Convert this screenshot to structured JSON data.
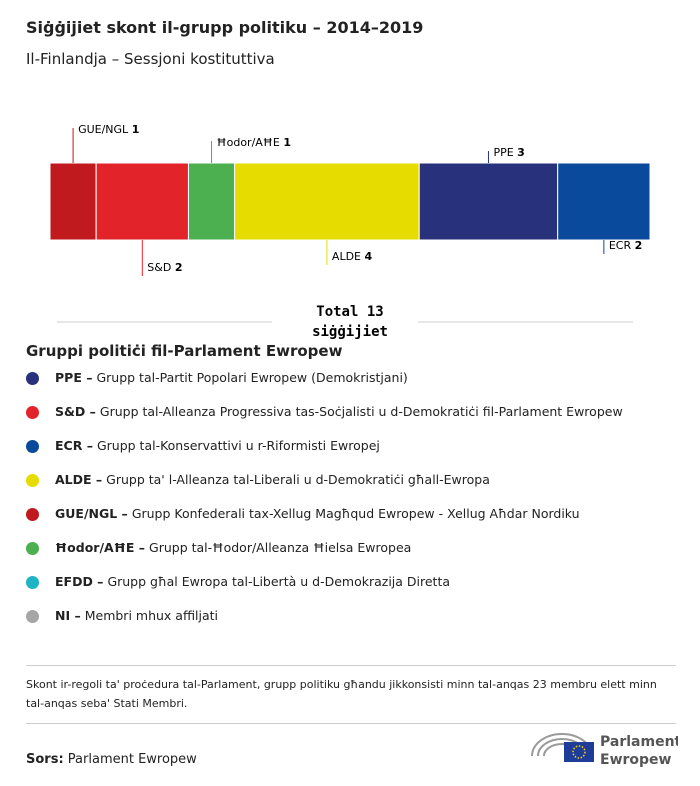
{
  "title": "Siġġijiet skont il-grupp politiku – 2014–2019",
  "subtitle": "Il-Finlandja – Sessjoni kostituttiva",
  "chart_data": {
    "type": "bar",
    "orientation": "horizontal",
    "stacked": true,
    "categories": [
      null
    ],
    "series": [
      {
        "name": "GUE/NGL",
        "color": "#c0191e",
        "values": [
          1
        ]
      },
      {
        "name": "S&D",
        "color": "#e3232a",
        "values": [
          2
        ]
      },
      {
        "name": "Ħodor/AĦE",
        "color": "#4caf50",
        "values": [
          1
        ]
      },
      {
        "name": "ALDE",
        "color": "#e6dc00",
        "values": [
          4
        ]
      },
      {
        "name": "PPE",
        "color": "#28317b",
        "values": [
          3
        ]
      },
      {
        "name": "ECR",
        "color": "#0a4a9c",
        "values": [
          2
        ]
      }
    ],
    "total_label": "Total",
    "total": 13,
    "total_unit": "siġġijiet"
  },
  "legend": {
    "title": "Gruppi politiċi fil-Parlament Ewropew",
    "items": [
      {
        "label": "PPE –",
        "description": "Grupp tal-Partit Popolari Ewropew (Demokristjani)",
        "color": "#28317b"
      },
      {
        "label": "S&D –",
        "description": "Grupp tal-Alleanza Progressiva tas-Soċjalisti u d-Demokratiċi fil-Parlament Ewropew",
        "color": "#e3232a"
      },
      {
        "label": "ECR –",
        "description": "Grupp tal-Konservattivi u r-Riformisti Ewropej",
        "color": "#0a4a9c"
      },
      {
        "label": "ALDE –",
        "description": "Grupp ta' l-Alleanza tal-Liberali u d-Demokratiċi għall-Ewropa",
        "color": "#e6dc00"
      },
      {
        "label": "GUE/NGL –",
        "description": "Grupp Konfederali tax-Xellug Magħqud Ewropew - Xellug Aħdar Nordiku",
        "color": "#c0191e"
      },
      {
        "label": "Ħodor/AĦE –",
        "description": "Grupp tal-Ħodor/Alleanza Ħielsa Ewropea",
        "color": "#4caf50"
      },
      {
        "label": "EFDD –",
        "description": "Grupp għal Ewropa tal-Libertà u d-Demokrazija Diretta",
        "color": "#1eb4c3"
      },
      {
        "label": "NI –",
        "description": "Membri mhux affiljati",
        "color": "#a6a6a6"
      }
    ]
  },
  "note": "Skont ir-regoli ta' proċedura tal-Parlament, grupp politiku għandu jikkonsisti minn tal-anqas 23 membru elett minn tal-anqas seba' Stati Membri.",
  "source": {
    "label": "Sors:",
    "text": "Parlament Ewropew"
  },
  "logo": {
    "line1": "Parlament",
    "line2": "Ewropew"
  }
}
